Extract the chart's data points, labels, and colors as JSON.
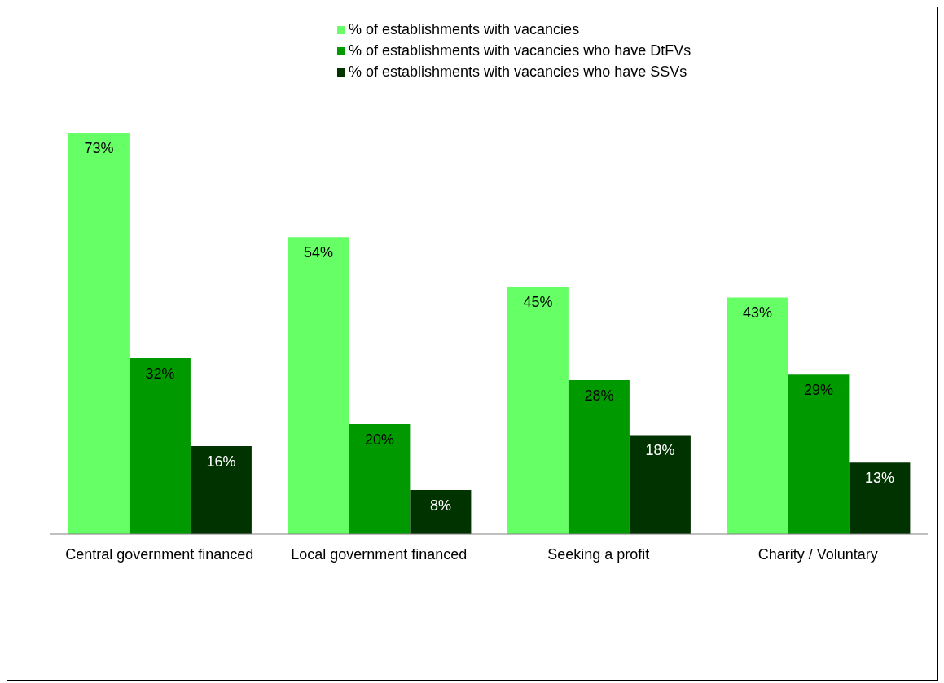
{
  "chart_data": {
    "type": "bar",
    "categories": [
      "Central government financed",
      "Local government financed",
      "Seeking a profit",
      "Charity / Voluntary"
    ],
    "series": [
      {
        "name": "% of establishments with vacancies",
        "color": "#66ff66",
        "values": [
          73,
          54,
          45,
          43
        ],
        "value_labels": [
          "73%",
          "54%",
          "45%",
          "43%"
        ]
      },
      {
        "name": "% of establishments with vacancies who have DtFVs",
        "color": "#009900",
        "values": [
          32,
          20,
          28,
          29
        ],
        "value_labels": [
          "32%",
          "20%",
          "28%",
          "29%"
        ]
      },
      {
        "name": "% of establishments with vacancies who have SSVs",
        "color": "#003300",
        "values": [
          16,
          8,
          18,
          13
        ],
        "value_labels": [
          "16%",
          "8%",
          "18%",
          "13%"
        ]
      }
    ],
    "legend": "top",
    "grid": false
  }
}
